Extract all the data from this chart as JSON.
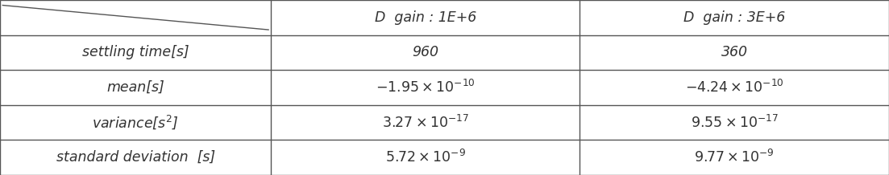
{
  "col_headers": [
    "D  gain : 1E+6",
    "D  gain : 3E+6"
  ],
  "row_headers": [
    "settling time[s]",
    "mean[s]",
    "variance[$s^2$]",
    "standard deviation  [s]"
  ],
  "cells": [
    [
      "960",
      "360"
    ],
    [
      "$-1.95\\times10^{-10}$",
      "$-4.24\\times10^{-10}$"
    ],
    [
      "$3.27\\times10^{-17}$",
      "$9.55\\times10^{-17}$"
    ],
    [
      "$5.72\\times10^{-9}$",
      "$9.77\\times10^{-9}$"
    ]
  ],
  "bg_color": "#ffffff",
  "text_color": "#333333",
  "line_color": "#555555",
  "col_bounds": [
    0.0,
    0.305,
    0.652,
    1.0
  ],
  "n_rows": 5,
  "fontsize": 12.5,
  "header_col_fontsize": 12.5,
  "diag_solid": true
}
